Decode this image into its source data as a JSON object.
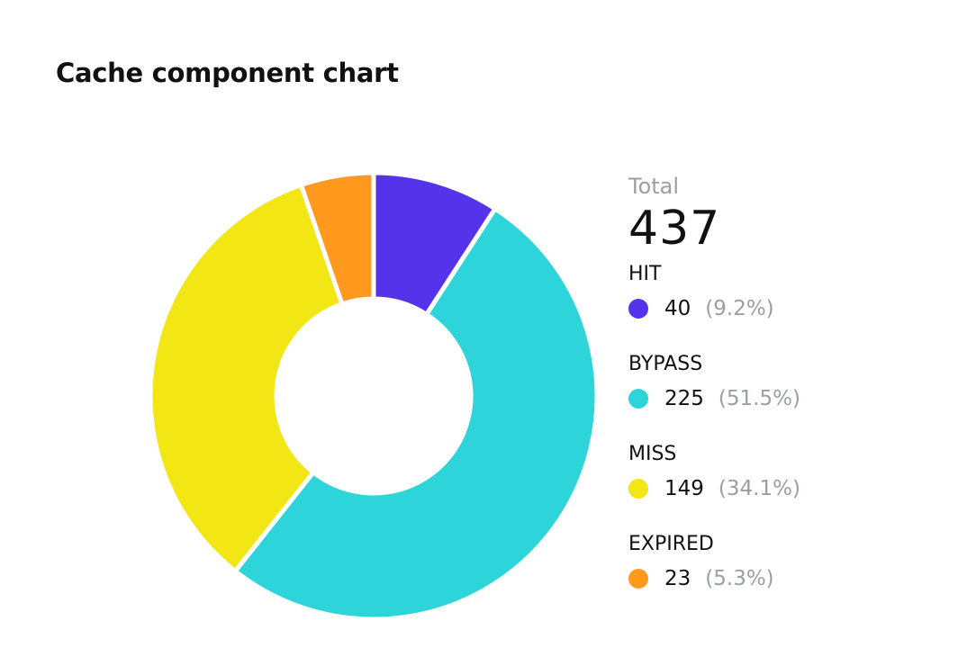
{
  "title": "Cache component chart",
  "chart_data": {
    "type": "pie",
    "variant": "donut",
    "title": "Cache component chart",
    "total_label": "Total",
    "total": 437,
    "categories": [
      "HIT",
      "BYPASS",
      "MISS",
      "EXPIRED"
    ],
    "values": [
      40,
      225,
      149,
      23
    ],
    "percent_labels": [
      "(9.2%)",
      "(51.5%)",
      "(34.1%)",
      "(5.3%)"
    ],
    "colors": [
      "#5433EB",
      "#2DD5DB",
      "#F2E614",
      "#FF9A1F"
    ],
    "legend_placement": "right"
  }
}
